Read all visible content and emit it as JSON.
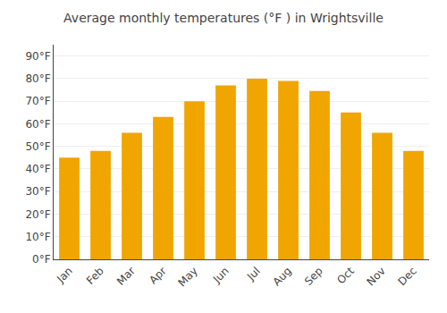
{
  "chart_data": {
    "type": "bar",
    "title": "Average monthly temperatures (°F ) in Wrightsville",
    "categories": [
      "Jan",
      "Feb",
      "Mar",
      "Apr",
      "May",
      "Jun",
      "Jul",
      "Aug",
      "Sep",
      "Oct",
      "Nov",
      "Dec"
    ],
    "values": [
      45,
      48,
      56,
      63,
      70,
      77,
      80,
      79,
      74.5,
      65,
      56,
      48
    ],
    "color": "#F0A500",
    "ylim": [
      0,
      95
    ],
    "yticks": [
      {
        "value": 0,
        "label": "0°F"
      },
      {
        "value": 10,
        "label": "10°F"
      },
      {
        "value": 20,
        "label": "20°F"
      },
      {
        "value": 30,
        "label": "30°F"
      },
      {
        "value": 40,
        "label": "40°F"
      },
      {
        "value": 50,
        "label": "50°F"
      },
      {
        "value": 60,
        "label": "60°F"
      },
      {
        "value": 70,
        "label": "70°F"
      },
      {
        "value": 80,
        "label": "80°F"
      },
      {
        "value": 90,
        "label": "90°F"
      }
    ],
    "grid": true
  }
}
